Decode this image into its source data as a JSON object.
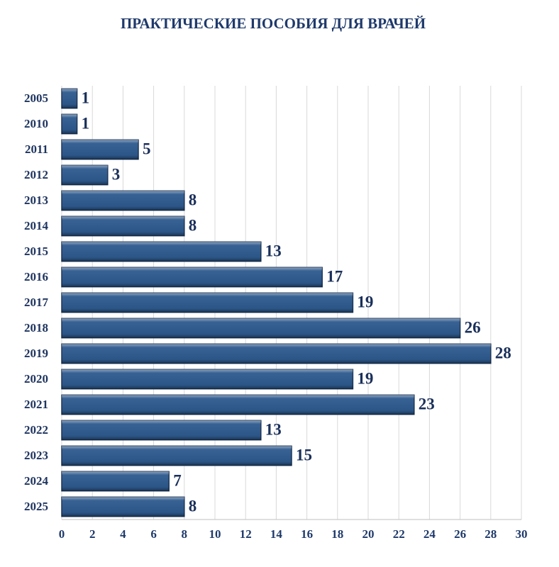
{
  "chart_data": {
    "type": "bar",
    "orientation": "horizontal",
    "title": "ПРАКТИЧЕСКИЕ ПОСОБИЯ ДЛЯ ВРАЧЕЙ",
    "categories": [
      "2005",
      "2010",
      "2011",
      "2012",
      "2013",
      "2014",
      "2015",
      "2016",
      "2017",
      "2018",
      "2019",
      "2020",
      "2021",
      "2022",
      "2023",
      "2024",
      "2025"
    ],
    "values": [
      1,
      1,
      5,
      3,
      8,
      8,
      13,
      17,
      19,
      26,
      28,
      19,
      23,
      13,
      15,
      7,
      8
    ],
    "color": "#2e5a8e",
    "xlim": [
      0,
      30
    ],
    "xticks": [
      0,
      2,
      4,
      6,
      8,
      10,
      12,
      14,
      16,
      18,
      20,
      22,
      24,
      26,
      28,
      30
    ],
    "grid": true
  }
}
